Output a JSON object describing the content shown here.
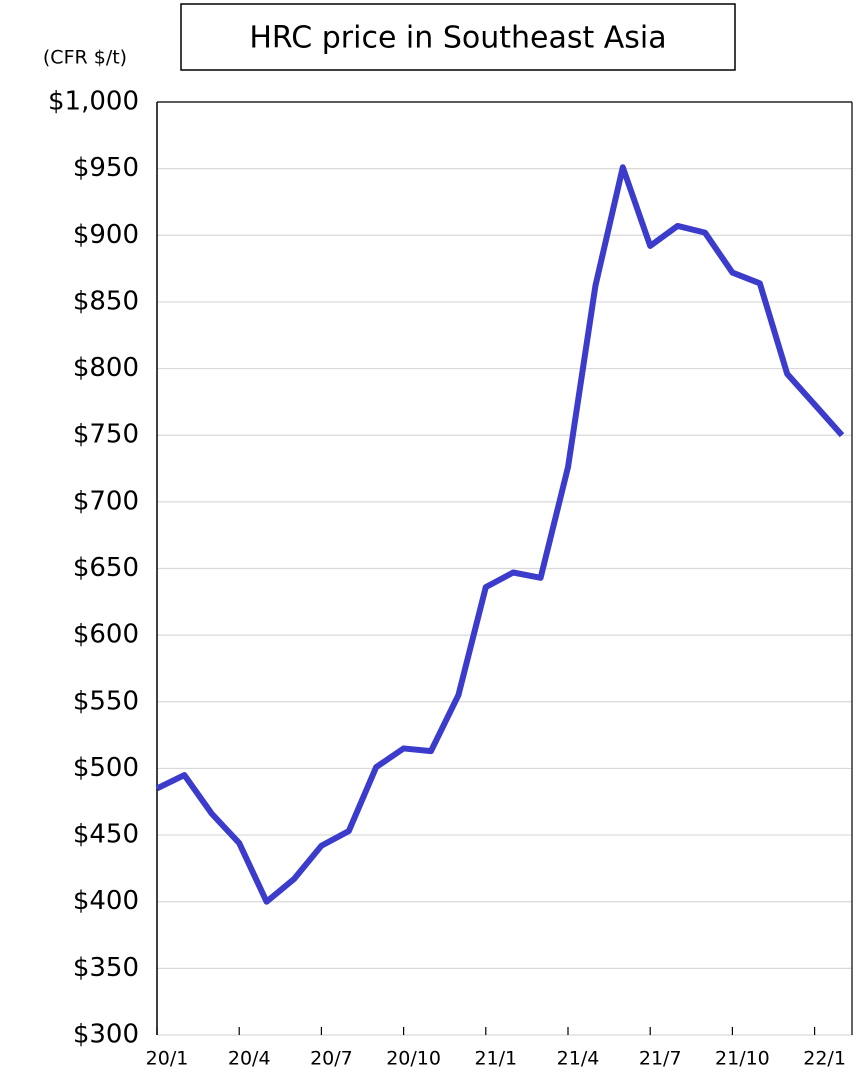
{
  "chart_data": {
    "type": "line",
    "title": "HRC price in Southeast Asia",
    "y_label": "(CFR $/t)",
    "categories": [
      "20/1",
      null,
      null,
      "20/4",
      null,
      null,
      "20/7",
      null,
      null,
      "20/10",
      null,
      null,
      "21/1",
      null,
      null,
      "21/4",
      null,
      null,
      "21/7",
      null,
      null,
      "21/10",
      null,
      null,
      "22/1",
      null
    ],
    "series": [
      {
        "name": "HRC price",
        "color": "#3c3ccc",
        "values": [
          485,
          495,
          466,
          444,
          400,
          417,
          442,
          453,
          501,
          515,
          513,
          555,
          636,
          647,
          643,
          726,
          862,
          951,
          892,
          907,
          902,
          872,
          864,
          796,
          773,
          750
        ]
      }
    ],
    "ylim": [
      300,
      1000
    ],
    "yticks": [
      {
        "value": 300,
        "label": "$300"
      },
      {
        "value": 350,
        "label": "$350"
      },
      {
        "value": 400,
        "label": "$400"
      },
      {
        "value": 450,
        "label": "$450"
      },
      {
        "value": 500,
        "label": "$500"
      },
      {
        "value": 550,
        "label": "$550"
      },
      {
        "value": 600,
        "label": "$600"
      },
      {
        "value": 650,
        "label": "$650"
      },
      {
        "value": 700,
        "label": "$700"
      },
      {
        "value": 750,
        "label": "$750"
      },
      {
        "value": 800,
        "label": "$800"
      },
      {
        "value": 850,
        "label": "$850"
      },
      {
        "value": 900,
        "label": "$900"
      },
      {
        "value": 950,
        "label": "$950"
      },
      {
        "value": 1000,
        "label": "$1,000"
      }
    ],
    "grid": true
  }
}
